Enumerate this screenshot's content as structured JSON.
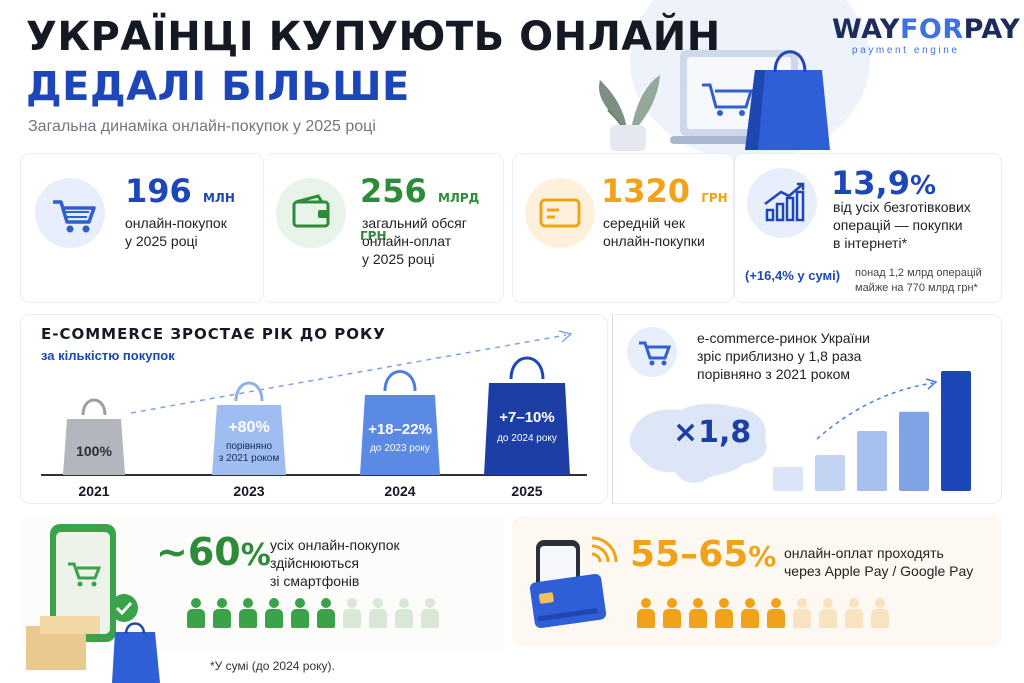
{
  "header": {
    "title_line1": "УКРАЇНЦІ КУПУЮТЬ ОНЛАЙН",
    "title_line2": "ДЕДАЛІ БІЛЬШЕ",
    "subtitle": "Загальна динаміка онлайн-покупок у 2025 році"
  },
  "logo": {
    "part1": "WAY",
    "part2": "FOR",
    "part3": "PAY",
    "tagline": "payment engine"
  },
  "stats": [
    {
      "value": "196",
      "unit": "МЛН",
      "desc_lines": [
        "онлайн-покупок",
        "у 2025 році"
      ],
      "icon": "cart-icon"
    },
    {
      "value": "256",
      "unit": "МЛРД ГРН",
      "desc_lines": [
        "загальний обсяг",
        "онлайн-оплат",
        "у 2025 році"
      ],
      "icon": "wallet-icon"
    },
    {
      "value": "1320",
      "unit": "ГРН",
      "desc_lines": [
        "середній чек",
        "онлайн-покупки"
      ],
      "icon": "card-icon"
    },
    {
      "value": "13,9",
      "unit": "%",
      "desc_lines": [
        "від усіх безготівкових",
        "операцій — покупки",
        "в інтернеті*"
      ],
      "icon": "growth-chart-icon",
      "note": "(+16,4% у сумі)",
      "small_lines": [
        "понад 1,2 млрд операцій",
        "майже на 770 млрд грн*"
      ]
    }
  ],
  "ecommerce": {
    "title": "E-COMMERCE ЗРОСТАЄ РІК ДО РОКУ",
    "subtitle": "за кількістю покупок",
    "bags": [
      {
        "year": "2021",
        "value": "100%",
        "note": ""
      },
      {
        "year": "2023",
        "value": "+80%",
        "note_lines": [
          "порівняно",
          "з 2021 роком"
        ]
      },
      {
        "year": "2024",
        "value": "+18–22%",
        "note_lines": [
          "до 2023 року"
        ]
      },
      {
        "year": "2025",
        "value": "+7–10%",
        "note_lines": [
          "до 2024 року"
        ]
      }
    ]
  },
  "market": {
    "lines": [
      "e-commerce-ринок України",
      "зріс приблизно у 1,8 раза",
      "порівняно з 2021 роком"
    ],
    "multiplier": "×1,8",
    "growth_levels": [
      0.2,
      0.3,
      0.5,
      0.66,
      1.0
    ]
  },
  "smartphones": {
    "value": "~60",
    "unit": "%",
    "lines": [
      "усіх онлайн-покупок",
      "здійснюються",
      "зі смартфонів"
    ],
    "filled": 6,
    "total": 10
  },
  "wallets": {
    "value": "55–65",
    "unit": "%",
    "lines": [
      "онлайн-оплат проходять",
      "через Apple Pay / Google Pay"
    ],
    "filled": 6,
    "total": 10
  },
  "footnote": "*У сумі (до 2024 року).",
  "colors": {
    "blue": "#1d47b8",
    "green": "#2e8b3a",
    "orange": "#f0a31a",
    "navy": "#141923"
  }
}
